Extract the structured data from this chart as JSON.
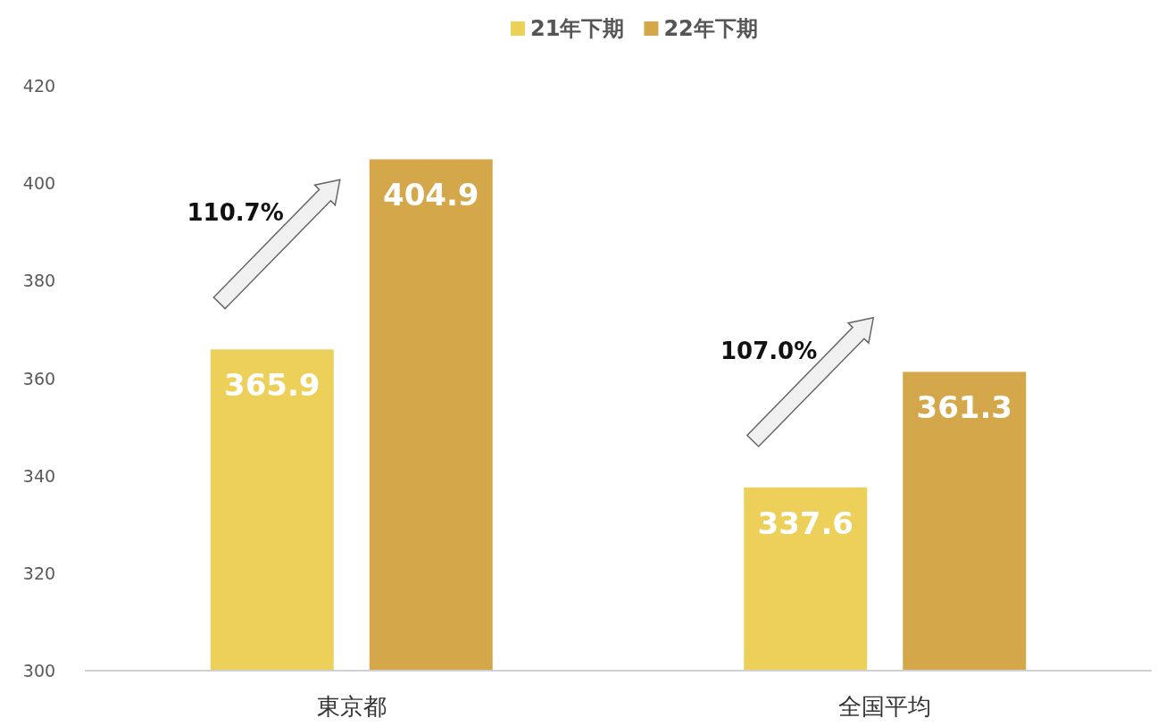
{
  "chart_data": {
    "type": "bar",
    "categories": [
      "東京都",
      "全国平均"
    ],
    "series": [
      {
        "name": "21年下期",
        "color": "#ecd05a",
        "values": [
          365.9,
          337.6
        ]
      },
      {
        "name": "22年下期",
        "color": "#d4a84a",
        "values": [
          404.9,
          361.3
        ]
      }
    ],
    "ylim": [
      300,
      420
    ],
    "yticks": [
      300,
      320,
      340,
      360,
      380,
      400,
      420
    ],
    "grid": false,
    "legend": "top",
    "data_labels": true,
    "annotations": [
      "110.7%",
      "107.0%"
    ]
  }
}
